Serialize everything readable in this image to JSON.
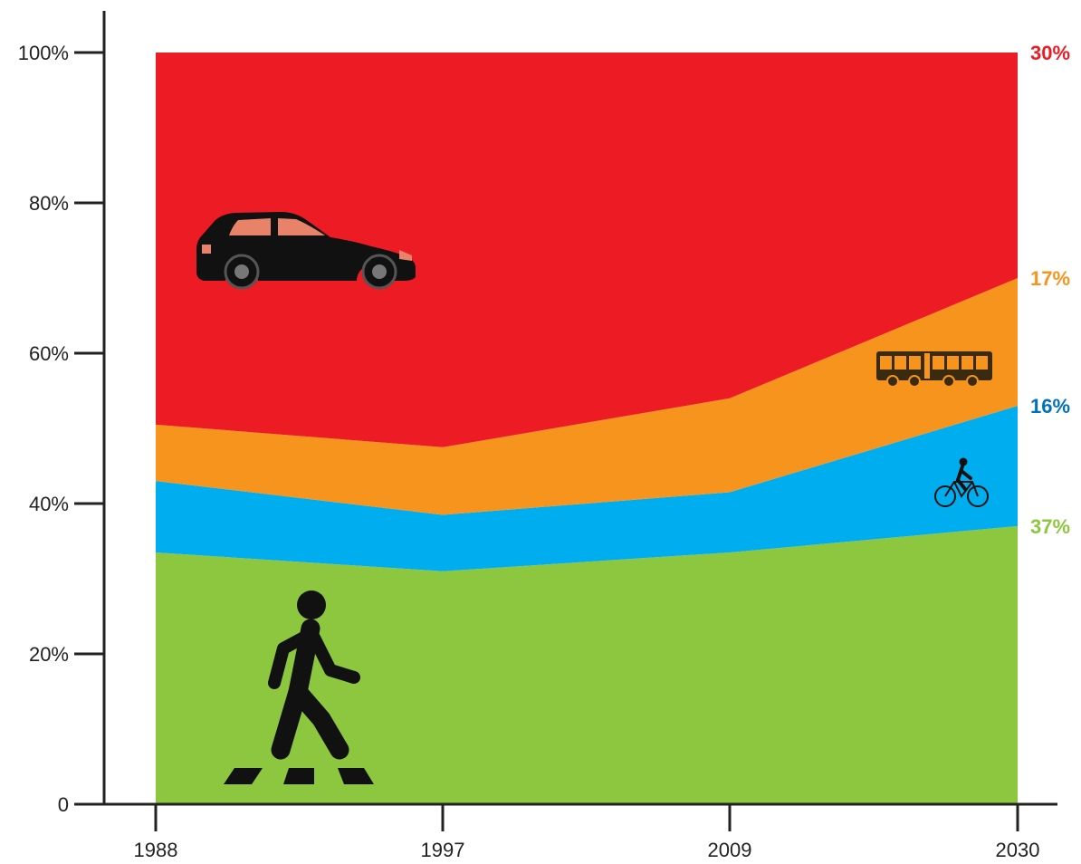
{
  "chart_data": {
    "type": "area",
    "stacked": true,
    "title": "",
    "xlabel": "",
    "ylabel": "",
    "x": [
      "1988",
      "1997",
      "2009",
      "2030"
    ],
    "ylim": [
      0,
      100
    ],
    "yticks": [
      0,
      20,
      40,
      60,
      80,
      100
    ],
    "ytick_labels": [
      "0",
      "20%",
      "40%",
      "60%",
      "80%",
      "100%"
    ],
    "grid": false,
    "legend": "none",
    "series": [
      {
        "key": "walk",
        "icon": "pedestrian-icon",
        "color": "#8dc63f",
        "values": [
          33.5,
          31,
          33.5,
          37
        ]
      },
      {
        "key": "bicycle",
        "icon": "bicycle-icon",
        "color": "#00aeef",
        "values": [
          9.5,
          7.5,
          8,
          16
        ]
      },
      {
        "key": "bus",
        "icon": "bus-icon",
        "color": "#f7941d",
        "values": [
          7.5,
          9,
          12.5,
          17
        ]
      },
      {
        "key": "car",
        "icon": "car-icon",
        "color": "#ed1c24",
        "values": [
          49.5,
          52.5,
          46,
          30
        ]
      }
    ],
    "end_labels": [
      {
        "text": "30%",
        "color": "#ed1c24"
      },
      {
        "text": "17%",
        "color": "#f7941d"
      },
      {
        "text": "16%",
        "color": "#0072bc"
      },
      {
        "text": "37%",
        "color": "#8dc63f"
      }
    ]
  }
}
